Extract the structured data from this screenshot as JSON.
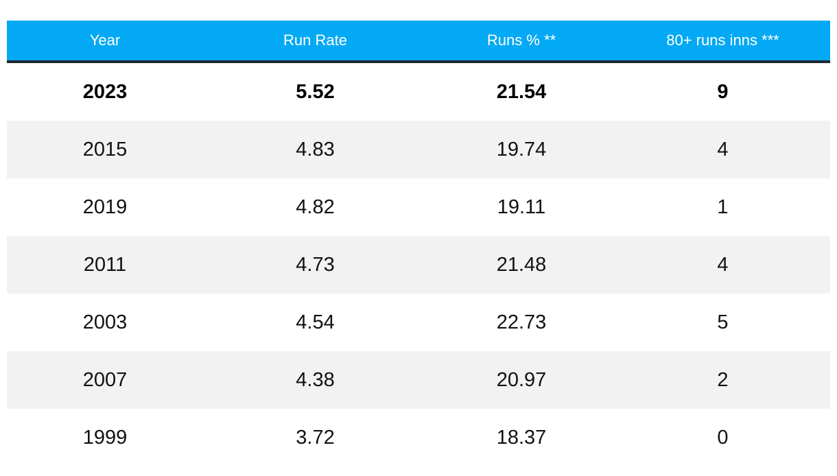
{
  "table": {
    "headers": [
      "Year",
      "Run Rate",
      "Runs % **",
      "80+ runs inns ***"
    ],
    "rows": [
      [
        "2023",
        "5.52",
        "21.54",
        "9"
      ],
      [
        "2015",
        "4.83",
        "19.74",
        "4"
      ],
      [
        "2019",
        "4.82",
        "19.11",
        "1"
      ],
      [
        "2011",
        "4.73",
        "21.48",
        "4"
      ],
      [
        "2003",
        "4.54",
        "22.73",
        "5"
      ],
      [
        "2007",
        "4.38",
        "20.97",
        "2"
      ],
      [
        "1999",
        "3.72",
        "18.37",
        "0"
      ]
    ]
  },
  "colors": {
    "header_bg": "#03a9f4",
    "header_text": "#ffffff",
    "header_rule": "#1f2a30",
    "stripe_bg": "#f2f2f2"
  }
}
